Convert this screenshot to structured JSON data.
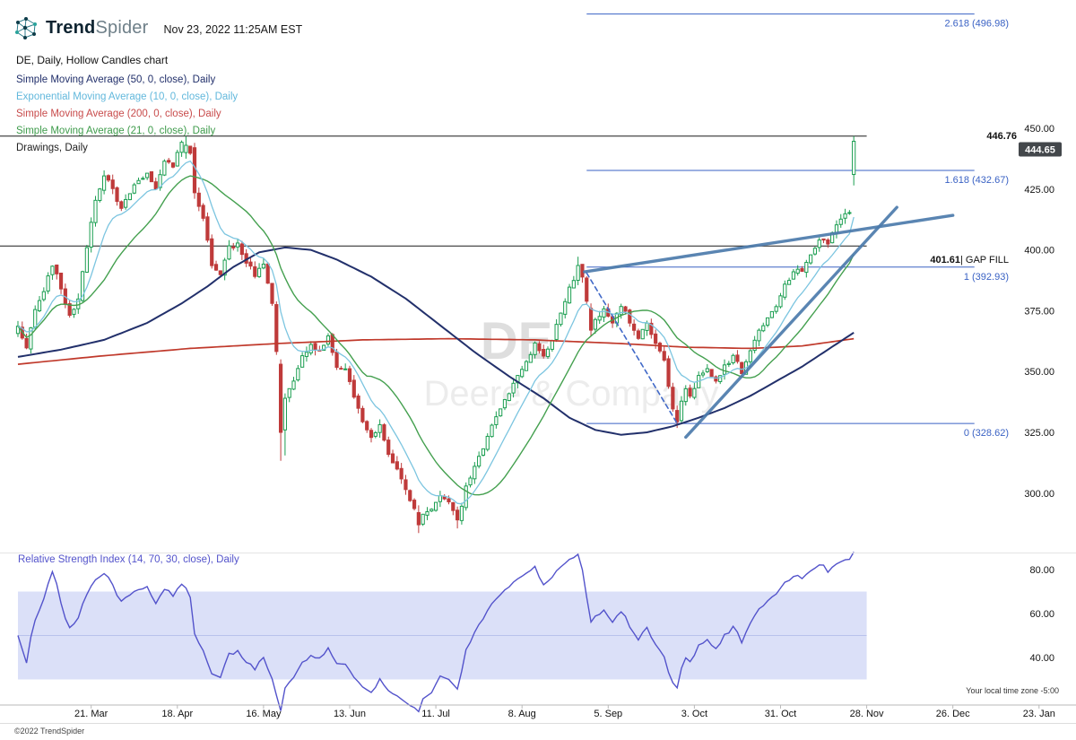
{
  "header": {
    "brand_bold": "Trend",
    "brand_light": "Spider",
    "datetime": "Nov 23, 2022 11:25AM EST",
    "chart_title": "DE, Daily, Hollow Candles chart"
  },
  "indicators": [
    {
      "label": "Simple Moving Average (50, 0, close), Daily",
      "color": "#22306b"
    },
    {
      "label": "Exponential Moving Average (10, 0, close), Daily",
      "color": "#62b8dc"
    },
    {
      "label": "Simple Moving Average (200, 0, close), Daily",
      "color": "#c84b4b"
    },
    {
      "label": "Simple Moving Average (21, 0, close), Daily",
      "color": "#3f9c4c"
    },
    {
      "label": "Drawings, Daily",
      "color": "#222222"
    }
  ],
  "footer": {
    "copyright": "©2022 TrendSpider",
    "timezone_note": "Your local time zone -5:00"
  },
  "chart_data": {
    "type": "candlestick",
    "symbol": "DE",
    "company": "Deere & Company",
    "timeframe": "Daily",
    "style": "Hollow Candles",
    "as_of": "Nov 23, 2022 11:25AM EST",
    "last_price": 444.65,
    "ylim": [
      283,
      500
    ],
    "price_axis_ticks": [
      {
        "value": 450,
        "label": "450.00"
      },
      {
        "value": 425,
        "label": "425.00"
      },
      {
        "value": 400,
        "label": "400.00"
      },
      {
        "value": 375,
        "label": "375.00"
      },
      {
        "value": 350,
        "label": "350.00"
      },
      {
        "value": 325,
        "label": "325.00"
      },
      {
        "value": 300,
        "label": "300.00"
      }
    ],
    "time_axis_ticks": [
      {
        "label": "21. Mar",
        "day": 17
      },
      {
        "label": "18. Apr",
        "day": 37
      },
      {
        "label": "16. May",
        "day": 57
      },
      {
        "label": "13. Jun",
        "day": 77
      },
      {
        "label": "11. Jul",
        "day": 97
      },
      {
        "label": "8. Aug",
        "day": 117
      },
      {
        "label": "5. Sep",
        "day": 137
      },
      {
        "label": "3. Oct",
        "day": 157
      },
      {
        "label": "31. Oct",
        "day": 177
      },
      {
        "label": "28. Nov",
        "day": 197
      },
      {
        "label": "26. Dec",
        "day": 217
      },
      {
        "label": "23. Jan",
        "day": 237
      }
    ],
    "close_keypoints": [
      [
        0,
        368
      ],
      [
        2,
        360
      ],
      [
        4,
        376
      ],
      [
        6,
        384
      ],
      [
        8,
        393
      ],
      [
        10,
        385
      ],
      [
        12,
        372
      ],
      [
        14,
        379
      ],
      [
        16,
        402
      ],
      [
        18,
        421
      ],
      [
        20,
        430
      ],
      [
        22,
        425
      ],
      [
        24,
        417
      ],
      [
        26,
        424
      ],
      [
        28,
        428
      ],
      [
        30,
        432
      ],
      [
        32,
        426
      ],
      [
        34,
        437
      ],
      [
        36,
        435
      ],
      [
        38,
        444
      ],
      [
        40,
        439
      ],
      [
        41,
        424
      ],
      [
        43,
        413
      ],
      [
        45,
        393
      ],
      [
        47,
        390
      ],
      [
        49,
        401
      ],
      [
        51,
        403
      ],
      [
        53,
        395
      ],
      [
        55,
        390
      ],
      [
        57,
        394
      ],
      [
        59,
        378
      ],
      [
        60,
        358
      ],
      [
        61,
        325
      ],
      [
        62,
        339
      ],
      [
        64,
        347
      ],
      [
        66,
        356
      ],
      [
        68,
        362
      ],
      [
        70,
        358
      ],
      [
        72,
        364
      ],
      [
        74,
        352
      ],
      [
        76,
        350
      ],
      [
        78,
        340
      ],
      [
        80,
        330
      ],
      [
        82,
        322
      ],
      [
        84,
        328
      ],
      [
        86,
        317
      ],
      [
        88,
        309
      ],
      [
        90,
        301
      ],
      [
        92,
        294
      ],
      [
        93,
        287
      ],
      [
        94,
        292
      ],
      [
        96,
        293
      ],
      [
        98,
        300
      ],
      [
        100,
        296
      ],
      [
        102,
        289
      ],
      [
        104,
        302
      ],
      [
        106,
        311
      ],
      [
        108,
        318
      ],
      [
        110,
        328
      ],
      [
        112,
        335
      ],
      [
        114,
        342
      ],
      [
        116,
        348
      ],
      [
        118,
        355
      ],
      [
        120,
        361
      ],
      [
        122,
        357
      ],
      [
        124,
        363
      ],
      [
        126,
        374
      ],
      [
        128,
        384
      ],
      [
        130,
        393
      ],
      [
        131,
        389
      ],
      [
        132,
        378
      ],
      [
        133,
        367
      ],
      [
        134,
        372
      ],
      [
        136,
        375
      ],
      [
        138,
        369
      ],
      [
        140,
        377
      ],
      [
        142,
        371
      ],
      [
        144,
        364
      ],
      [
        146,
        370
      ],
      [
        148,
        362
      ],
      [
        150,
        354
      ],
      [
        151,
        344
      ],
      [
        152,
        334
      ],
      [
        153,
        329
      ],
      [
        154,
        337
      ],
      [
        155,
        342
      ],
      [
        156,
        339
      ],
      [
        158,
        348
      ],
      [
        160,
        352
      ],
      [
        162,
        346
      ],
      [
        164,
        352
      ],
      [
        166,
        356
      ],
      [
        168,
        350
      ],
      [
        170,
        358
      ],
      [
        172,
        366
      ],
      [
        174,
        372
      ],
      [
        176,
        377
      ],
      [
        178,
        385
      ],
      [
        180,
        392
      ],
      [
        182,
        390
      ],
      [
        184,
        398
      ],
      [
        186,
        405
      ],
      [
        188,
        402
      ],
      [
        190,
        410
      ],
      [
        192,
        414
      ],
      [
        193,
        416
      ],
      [
        194,
        444.65
      ]
    ],
    "override_candles": [
      {
        "day": 39,
        "open": 440,
        "high": 446.7,
        "low": 437.5,
        "close": 443
      },
      {
        "day": 41,
        "open": 442,
        "high": 444,
        "low": 421,
        "close": 423.5
      },
      {
        "day": 61,
        "open": 353,
        "high": 355,
        "low": 313.3,
        "close": 325
      },
      {
        "day": 62,
        "open": 326,
        "high": 341,
        "low": 315.5,
        "close": 339
      },
      {
        "day": 93,
        "open": 292,
        "high": 295,
        "low": 283.6,
        "close": 287
      },
      {
        "day": 102,
        "open": 293,
        "high": 294.5,
        "low": 285.5,
        "close": 289
      },
      {
        "day": 130,
        "open": 387.5,
        "high": 397.2,
        "low": 385.5,
        "close": 393.6
      },
      {
        "day": 133,
        "open": 376,
        "high": 378,
        "low": 364.5,
        "close": 367
      },
      {
        "day": 153,
        "open": 334,
        "high": 336,
        "low": 326.8,
        "close": 329.3
      },
      {
        "day": 194,
        "open": 431,
        "high": 446.76,
        "low": 426.5,
        "close": 444.65
      }
    ],
    "sma50_keypoints": [
      [
        0,
        356
      ],
      [
        10,
        359
      ],
      [
        20,
        363
      ],
      [
        30,
        370
      ],
      [
        38,
        378
      ],
      [
        44,
        385
      ],
      [
        50,
        393
      ],
      [
        56,
        399
      ],
      [
        62,
        401
      ],
      [
        68,
        400
      ],
      [
        74,
        396
      ],
      [
        82,
        389
      ],
      [
        90,
        380
      ],
      [
        98,
        369
      ],
      [
        106,
        358
      ],
      [
        114,
        348
      ],
      [
        122,
        339
      ],
      [
        128,
        331
      ],
      [
        134,
        326
      ],
      [
        140,
        324
      ],
      [
        146,
        325
      ],
      [
        152,
        327.5
      ],
      [
        158,
        331
      ],
      [
        164,
        335
      ],
      [
        170,
        340
      ],
      [
        176,
        346
      ],
      [
        182,
        352
      ],
      [
        188,
        359
      ],
      [
        194,
        366
      ]
    ],
    "sma200_keypoints": [
      [
        0,
        353
      ],
      [
        20,
        356.5
      ],
      [
        40,
        359.5
      ],
      [
        60,
        361.5
      ],
      [
        80,
        363
      ],
      [
        100,
        363.5
      ],
      [
        120,
        363
      ],
      [
        140,
        361.5
      ],
      [
        155,
        360
      ],
      [
        170,
        359.5
      ],
      [
        182,
        360.5
      ],
      [
        194,
        363.5
      ]
    ],
    "fib_levels": [
      {
        "label": "2.618 (496.98)",
        "value": 496.98
      },
      {
        "label": "1.618 (432.67)",
        "value": 432.67
      },
      {
        "label": "1 (392.93)",
        "value": 392.93
      },
      {
        "label": "0 (328.62)",
        "value": 328.62
      }
    ],
    "fib_day_range": [
      132,
      222
    ],
    "high_line": {
      "label": "446.76",
      "value": 446.76
    },
    "gap_line": {
      "price_label": "401.61",
      "note": "| GAP FILL",
      "value": 401.61
    },
    "trendlines": [
      {
        "from": [
          131.5,
          391
        ],
        "to": [
          217,
          414.2
        ],
        "style": "solid"
      },
      {
        "from": [
          155,
          323
        ],
        "to": [
          204,
          417.5
        ],
        "style": "solid"
      },
      {
        "from": [
          132,
          390.5
        ],
        "to": [
          153,
          328.7
        ],
        "style": "dashed"
      }
    ],
    "rsi": {
      "title": "Relative Strength Index (14, 70, 30, close), Daily",
      "period": 14,
      "upper": 70,
      "lower": 30,
      "ticks": [
        {
          "value": 80,
          "label": "80.00"
        },
        {
          "value": 60,
          "label": "60.00"
        },
        {
          "value": 40,
          "label": "40.00"
        }
      ]
    },
    "colors": {
      "up": "#1a9e50",
      "down": "#bf3a3a",
      "sma50": "#22306b",
      "ema10": "#7cc5e0",
      "sma200": "#c0392b",
      "sma21": "#44a04f",
      "fib": "#3a62c4",
      "trend": "#4c7bab",
      "dashed": "#4169c8",
      "rsi": "#5353cb",
      "rsi_band": "#dbe0f8",
      "badge_bg": "#43474b"
    }
  }
}
